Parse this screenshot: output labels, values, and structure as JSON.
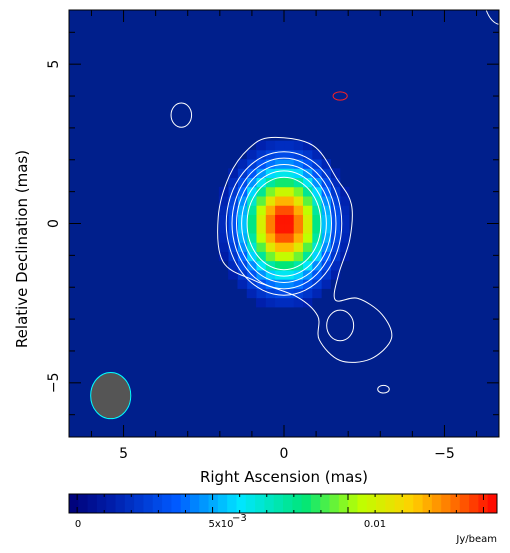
{
  "chart_data": {
    "type": "heatmap",
    "xlabel": "Right Ascension  (mas)",
    "ylabel": "Relative Declination  (mas)",
    "xlim": [
      6.7,
      -6.7
    ],
    "ylim": [
      -6.7,
      6.7
    ],
    "x_ticks": [
      5,
      0,
      -5
    ],
    "y_ticks": [
      5,
      0,
      -5
    ],
    "x_tick_labels": [
      "5",
      "0",
      "−5"
    ],
    "y_tick_labels": [
      "5",
      "0",
      "−5"
    ],
    "peak": {
      "x": 0.0,
      "y": 0.0,
      "value": 0.0155
    },
    "components": [
      {
        "x": 0.0,
        "y": 0.0,
        "sigma_x": 0.9,
        "sigma_y": 1.2,
        "amplitude": 0.0155
      },
      {
        "x": -1.8,
        "y": -3.2,
        "sigma_x": 0.6,
        "sigma_y": 0.5,
        "amplitude": 0.0003
      }
    ],
    "beam": {
      "x": 5.4,
      "y": -5.4,
      "major": 1.45,
      "minor": 1.25
    },
    "colorbar": {
      "min": -0.0003,
      "max": 0.0155,
      "ticks": [
        0,
        0.005,
        0.01
      ],
      "tick_labels": [
        "0",
        "5x10",
        "0.01"
      ],
      "exponent": "−3",
      "unit": "Jy/beam"
    },
    "colors": {
      "background": "#001f8c",
      "contour": "#ffffff",
      "negative_contour": "#ff2020",
      "beam_fill": "#555555",
      "beam_outline": "#00ffff"
    },
    "grid": false,
    "legend": "none"
  }
}
